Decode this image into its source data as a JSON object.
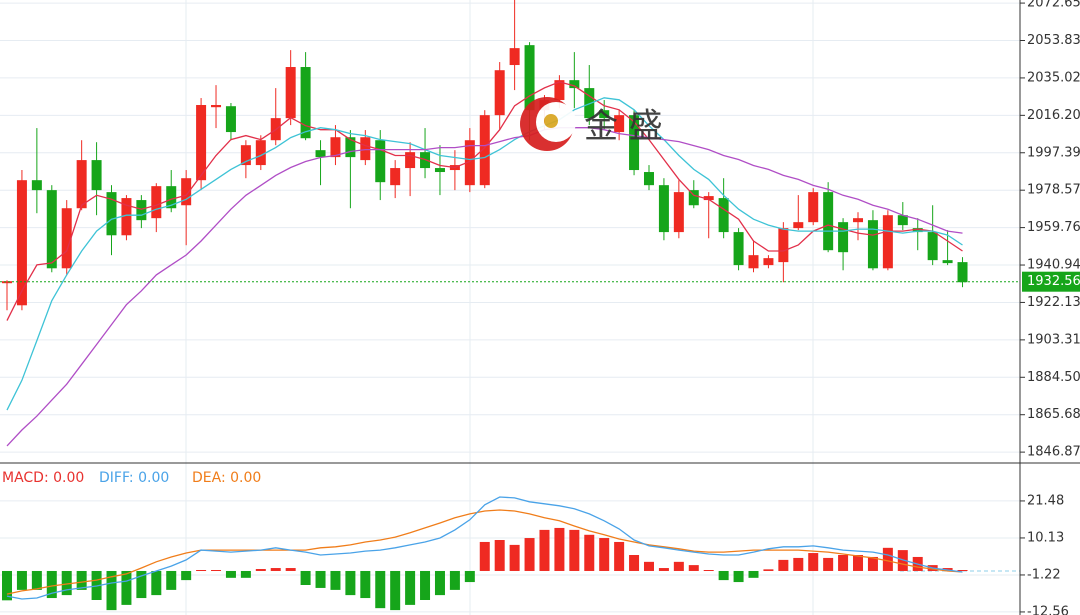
{
  "chart_data": {
    "type": "candlestick",
    "up_color": "#ef2a22",
    "down_color": "#16a51a",
    "ylim": [
      1841.9,
      2074.2
    ],
    "yticks": [
      2072.65,
      2053.83,
      2035.02,
      {
        "value": 2016.2,
        "label": "2016.20"
      },
      1997.39,
      1978.57,
      1959.76,
      1940.94,
      1922.13,
      1903.31,
      {
        "value": 1884.5,
        "label": "1884.50"
      },
      1865.68,
      1846.87
    ],
    "grid": true,
    "last_price": 1932.56,
    "last_price_color": "#16a51a",
    "watermark": "金 盛",
    "open": [
      1931.8,
      1920.7,
      1983.6,
      1978.6,
      1939.3,
      1969.5,
      1993.7,
      1977.6,
      1955.9,
      1973.6,
      1964.5,
      1980.6,
      1971.0,
      1983.6,
      2020.3,
      2020.8,
      1991.2,
      1991.2,
      2003.7,
      2014.8,
      2040.5,
      1998.7,
      1995.2,
      2005.2,
      1993.7,
      2003.7,
      1981.1,
      1989.7,
      1997.7,
      1989.7,
      1988.7,
      1981.1,
      1981.1,
      2016.3,
      2041.5,
      2051.5,
      2018.8,
      2023.9,
      2033.9,
      2029.9,
      2018.8,
      2007.8,
      2016.3,
      1987.7,
      1981.1,
      1957.5,
      1978.6,
      1973.6,
      1974.6,
      1957.5,
      1939.3,
      1940.9,
      1942.4,
      1959.5,
      1962.5,
      1977.6,
      1962.5,
      1962.5,
      1963.5,
      1939.3,
      1966.0,
      1959.5,
      1957.5,
      1943.4,
      1942.4
    ],
    "close": [
      1932.8,
      1983.6,
      1978.6,
      1939.3,
      1969.5,
      1993.7,
      1978.6,
      1955.9,
      1974.6,
      1963.5,
      1980.6,
      1969.5,
      1984.6,
      2021.4,
      2021.4,
      2007.8,
      2001.2,
      2003.7,
      2014.8,
      2040.5,
      2004.7,
      1995.2,
      2005.2,
      1995.2,
      2005.2,
      1982.6,
      1989.7,
      1997.7,
      1989.7,
      1987.7,
      1991.2,
      2003.7,
      2016.3,
      2038.9,
      2050.0,
      2018.8,
      2023.9,
      2033.9,
      2029.9,
      2014.8,
      2014.8,
      2016.3,
      1988.7,
      1981.1,
      1957.5,
      1977.6,
      1971.0,
      1975.6,
      1957.5,
      1940.9,
      1945.9,
      1944.4,
      1959.5,
      1962.5,
      1977.6,
      1948.4,
      1947.4,
      1964.5,
      1939.3,
      1966.0,
      1961.0,
      1957.5,
      1943.4,
      1941.9,
      1932.3
    ],
    "high": [
      1933.3,
      1988.7,
      2009.8,
      1981.1,
      1973.6,
      2003.7,
      2002.7,
      1981.1,
      1976.1,
      1976.1,
      1982.1,
      1988.7,
      1988.7,
      2024.9,
      2031.4,
      2022.4,
      2003.7,
      2006.2,
      2029.9,
      2049.0,
      2048.0,
      2003.7,
      2011.3,
      2008.8,
      2008.8,
      2008.8,
      1993.7,
      2002.7,
      2009.8,
      2001.2,
      1998.7,
      2009.8,
      2018.8,
      2043.0,
      2074.2,
      2053.0,
      2026.4,
      2036.4,
      2048.0,
      2041.5,
      2023.9,
      2018.8,
      2018.8,
      1991.2,
      1984.6,
      1983.6,
      1983.6,
      1977.6,
      1984.6,
      1959.5,
      1953.4,
      1945.9,
      1962.5,
      1976.1,
      1979.6,
      1982.6,
      1964.5,
      1967.5,
      1968.5,
      1968.5,
      1972.6,
      1964.5,
      1971.0,
      1958.5,
      1944.9
    ],
    "low": [
      1918.2,
      1918.2,
      1967.0,
      1937.3,
      1935.8,
      1968.5,
      1966.0,
      1945.9,
      1953.4,
      1959.5,
      1957.5,
      1967.5,
      1950.9,
      1978.6,
      2009.8,
      2003.7,
      1984.6,
      1988.7,
      2001.2,
      2011.3,
      2003.7,
      1981.1,
      1991.2,
      1969.5,
      1991.2,
      1973.6,
      1974.6,
      1975.6,
      1984.6,
      1976.1,
      1978.6,
      1977.6,
      1979.6,
      2008.8,
      2028.9,
      2003.7,
      2008.8,
      2019.8,
      2019.8,
      2011.3,
      2008.8,
      2003.7,
      1986.1,
      1978.6,
      1953.4,
      1954.4,
      1969.5,
      1954.4,
      1954.4,
      1938.3,
      1937.3,
      1939.3,
      1932.3,
      1958.5,
      1961.0,
      1947.4,
      1938.3,
      1953.4,
      1938.3,
      1938.3,
      1958.5,
      1948.4,
      1940.9,
      1940.9,
      1929.8
    ],
    "lines": [
      {
        "color": "#e2304a",
        "values": [
          1913,
          1928,
          1941,
          1942,
          1948,
          1971,
          1976,
          1974,
          1971,
          1969,
          1971,
          1974,
          1976,
          1986,
          1996,
          2004,
          2006,
          2004,
          2009,
          2015,
          2011,
          2009,
          2009,
          2004,
          2001,
          1999,
          1996,
          1996,
          1994,
          1991,
          1990,
          1993,
          2000,
          2009,
          2021,
          2026,
          2030,
          2033,
          2031,
          2026,
          2021,
          2019,
          2013,
          2004,
          1994,
          1984,
          1976,
          1974,
          1969,
          1964,
          1953,
          1948,
          1948,
          1951,
          1958,
          1961,
          1959,
          1957,
          1956,
          1958,
          1958,
          1959,
          1958,
          1953,
          1948
        ]
      },
      {
        "color": "#3ec3d6",
        "values": [
          1868,
          1883,
          1903,
          1923,
          1936,
          1948,
          1958,
          1964,
          1966,
          1966,
          1969,
          1971,
          1974,
          1979,
          1984,
          1989,
          1993,
          1996,
          2000,
          2005,
          2008,
          2010,
          2009,
          2007,
          2006,
          2004,
          2003,
          2002,
          1999,
          1996,
          1995,
          1994,
          1995,
          1999,
          2004,
          2008,
          2011,
          2014,
          2019,
          2022,
          2025,
          2024,
          2019,
          2011,
          2004,
          1996,
          1989,
          1984,
          1976,
          1969,
          1964,
          1961,
          1959,
          1958,
          1958,
          1958,
          1958,
          1959,
          1959,
          1958,
          1957,
          1958,
          1958,
          1956,
          1951
        ]
      },
      {
        "color": "#b04ec6",
        "values": [
          1850,
          1858,
          1865,
          1873,
          1881,
          1891,
          1901,
          1911,
          1921,
          1928,
          1936,
          1941,
          1946,
          1953,
          1961,
          1969,
          1976,
          1981,
          1986,
          1990,
          1993,
          1995,
          1996,
          1998,
          1999,
          1999,
          1999,
          1999,
          1999,
          2000,
          2000,
          2001,
          2001,
          2003,
          2005,
          2006,
          2009,
          2010,
          2010,
          2010,
          2009,
          2007,
          2006,
          2005,
          2004,
          2003,
          2001,
          1999,
          1996,
          1994,
          1991,
          1989,
          1986,
          1984,
          1981,
          1979,
          1976,
          1974,
          1971,
          1969,
          1966,
          1964,
          1961,
          1958,
          1957
        ]
      }
    ],
    "macd": {
      "legend": [
        {
          "text": "MACD: 0.00",
          "color": "#e8322f"
        },
        {
          "text": "DIFF: 0.00",
          "color": "#4aa3e8"
        },
        {
          "text": "DEA: 0.00",
          "color": "#f07d1a"
        }
      ],
      "y2lim": [
        -13.5,
        32.5
      ],
      "y2ticks": [
        21.48,
        10.13,
        -1.22,
        -12.56
      ],
      "histogram": [
        -9.0,
        -5.8,
        -5.8,
        -8.3,
        -7.4,
        -5.8,
        -8.9,
        -12.0,
        -10.4,
        -8.3,
        -7.4,
        -5.8,
        -2.8,
        0.3,
        0.3,
        -2.1,
        -2.1,
        0.6,
        0.9,
        0.9,
        -4.3,
        -5.2,
        -5.8,
        -7.4,
        -8.3,
        -11.4,
        -12.0,
        -10.4,
        -8.9,
        -7.4,
        -5.8,
        -3.4,
        8.9,
        9.5,
        8.0,
        10.1,
        12.6,
        13.2,
        12.6,
        11.1,
        10.1,
        8.9,
        4.9,
        2.8,
        0.9,
        2.8,
        1.8,
        0.3,
        -2.8,
        -3.4,
        -2.1,
        0.5,
        3.4,
        4.0,
        5.5,
        4.0,
        4.9,
        4.9,
        4.3,
        7.1,
        6.4,
        4.3,
        1.8,
        0.9,
        0.3
      ],
      "diff": [
        -7.7,
        -8.6,
        -8.3,
        -6.8,
        -5.8,
        -5.2,
        -4.6,
        -3.7,
        -3.1,
        -1.5,
        0,
        1.5,
        3.4,
        6.4,
        6.1,
        5.8,
        6.1,
        6.4,
        7.1,
        6.4,
        5.8,
        4.9,
        5.2,
        5.5,
        6.1,
        6.4,
        7.1,
        8.0,
        8.9,
        10.1,
        12.6,
        15.7,
        20.3,
        22.7,
        22.4,
        21.2,
        20.6,
        20.0,
        19.1,
        17.5,
        15.4,
        12.9,
        9.5,
        7.7,
        7.1,
        6.4,
        5.8,
        5.2,
        4.9,
        4.9,
        5.8,
        6.8,
        7.4,
        7.4,
        7.7,
        7.1,
        6.4,
        6.1,
        5.8,
        4.9,
        3.4,
        2.1,
        0.9,
        0.3,
        -0.3
      ],
      "dea": [
        -7.1,
        -6.1,
        -5.5,
        -4.6,
        -4.0,
        -3.4,
        -2.8,
        -1.8,
        -0.9,
        0.9,
        2.8,
        4.3,
        5.5,
        6.4,
        6.4,
        6.4,
        6.4,
        6.4,
        6.4,
        6.4,
        6.4,
        7.1,
        7.4,
        8.0,
        8.9,
        9.5,
        10.4,
        11.7,
        13.2,
        14.7,
        16.3,
        17.5,
        18.4,
        18.7,
        18.4,
        17.5,
        16.3,
        15.4,
        13.8,
        12.3,
        11.1,
        9.8,
        8.9,
        8.0,
        7.4,
        6.8,
        6.1,
        5.8,
        5.8,
        6.1,
        6.4,
        6.4,
        6.4,
        6.4,
        6.1,
        5.8,
        5.2,
        4.6,
        4.0,
        3.1,
        2.1,
        1.2,
        0.6,
        0,
        -0.3
      ]
    }
  }
}
